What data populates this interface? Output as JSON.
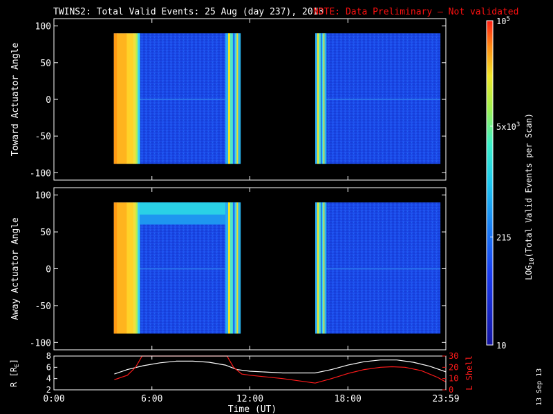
{
  "header": {
    "title": "TWINS2: Total Valid Events: 25 Aug (day 237), 2013",
    "note": "NOTE: Data Preliminary — Not validated",
    "stamp": "13 Sep 13"
  },
  "colors": {
    "background": "#000000",
    "axes": "#ffffff",
    "note": "#ff1010",
    "orbit_r": "#ffffff",
    "orbit_l": "#ff1a1a"
  },
  "chart_data": [
    {
      "type": "heatmap",
      "title": "Toward Actuator Angle",
      "ylabel": "Toward Actuator Angle",
      "xlim": [
        "00:00",
        "23:59"
      ],
      "ylim": [
        -110,
        110
      ],
      "yticks": [
        "100",
        "50",
        "0",
        "-50",
        "-100"
      ],
      "data_blocks": [
        {
          "start": "03:40",
          "end": "11:25",
          "angle_range": [
            -88,
            90
          ]
        },
        {
          "start": "16:00",
          "end": "23:40",
          "angle_range": [
            -88,
            90
          ]
        }
      ],
      "features": [
        {
          "start": "03:40",
          "end": "05:15",
          "level": "high (~1e4–5e4)",
          "color_name": "orange"
        },
        {
          "start": "10:30",
          "end": "11:25",
          "level": "moderate",
          "color_name": "yellow-cyan"
        },
        {
          "start": "16:00",
          "end": "16:40",
          "level": "moderate",
          "color_name": "yellow-cyan"
        }
      ],
      "background_level": "low (~50–200)"
    },
    {
      "type": "heatmap",
      "title": "Away Actuator Angle",
      "ylabel": "Away Actuator Angle",
      "xlim": [
        "00:00",
        "23:59"
      ],
      "ylim": [
        -110,
        110
      ],
      "yticks": [
        "100",
        "50",
        "0",
        "-50",
        "-100"
      ],
      "data_blocks": [
        {
          "start": "03:40",
          "end": "11:25",
          "angle_range": [
            -88,
            90
          ]
        },
        {
          "start": "16:00",
          "end": "23:40",
          "angle_range": [
            -88,
            90
          ]
        }
      ],
      "features": [
        {
          "start": "03:40",
          "end": "05:15",
          "level": "high (~1e4–5e4)",
          "color_name": "orange"
        },
        {
          "start": "05:15",
          "end": "10:30",
          "angle_range": [
            60,
            90
          ],
          "level": "moderate",
          "color_name": "cyan"
        },
        {
          "start": "10:30",
          "end": "11:25",
          "level": "moderate",
          "color_name": "yellow-cyan"
        },
        {
          "start": "16:00",
          "end": "16:40",
          "level": "moderate",
          "color_name": "yellow-cyan"
        }
      ],
      "background_level": "low (~50–200)"
    },
    {
      "type": "line",
      "ylabel_left": "R [R",
      "ylabel_left_sub": "E",
      "ylabel_left_end": "]",
      "ylabel_right": "L Shell",
      "xlim": [
        "00:00",
        "23:59"
      ],
      "ylim_left": [
        2,
        8
      ],
      "ylim_right": [
        0,
        30
      ],
      "yticks_left": [
        "8",
        "6",
        "4",
        "2"
      ],
      "yticks_right": [
        "30",
        "20",
        "10",
        "0"
      ],
      "series": [
        {
          "name": "R [RE]",
          "axis": "left",
          "x_hours": [
            3.7,
            4.5,
            5.5,
            6.5,
            7.5,
            8.5,
            9.5,
            10.5,
            11.2,
            12,
            14,
            16,
            17,
            18,
            19,
            20,
            21,
            22,
            23,
            24
          ],
          "values": [
            4.8,
            5.6,
            6.3,
            6.8,
            7.1,
            7.1,
            6.9,
            6.4,
            5.6,
            5.3,
            5.0,
            5.0,
            5.6,
            6.4,
            7.0,
            7.3,
            7.3,
            6.9,
            6.2,
            5.2
          ]
        },
        {
          "name": "L Shell",
          "axis": "right",
          "x_hours": [
            3.7,
            4.5,
            5.0,
            5.4,
            10.6,
            11.0,
            11.5,
            12,
            14,
            16,
            17,
            18,
            19,
            20,
            20.7,
            21.5,
            22.5,
            23.5,
            24
          ],
          "values": [
            9,
            13,
            20,
            30,
            30,
            20,
            14,
            13,
            10,
            6,
            10,
            14.5,
            18,
            20,
            20.5,
            20,
            17,
            11,
            7
          ]
        }
      ]
    }
  ],
  "xaxis": {
    "ticks": [
      "0:00",
      "6:00",
      "12:00",
      "18:00",
      "23:59"
    ],
    "label": "Time (UT)"
  },
  "colorbar": {
    "label_pre": "LOG",
    "label_sub": "10",
    "label_post": "(Total Valid Events per Scan)",
    "scale": "log",
    "range": [
      10,
      100000
    ],
    "ticks": [
      {
        "value": 100000,
        "base": "10",
        "exp": "5"
      },
      {
        "value": 5000,
        "base": "5x10",
        "exp": "3"
      },
      {
        "value": 215,
        "text": "215"
      },
      {
        "value": 10,
        "text": "10"
      }
    ]
  }
}
